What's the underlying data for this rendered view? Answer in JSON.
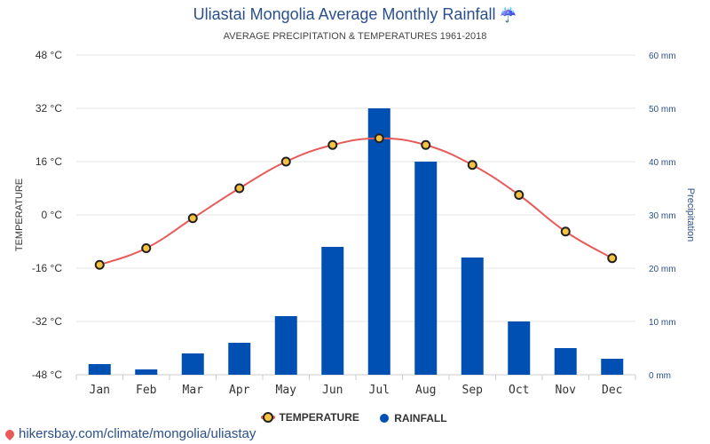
{
  "title": "Uliastai Mongolia Average Monthly Rainfall",
  "title_icon": "umbrella-icon",
  "subtitle": "AVERAGE PRECIPITATION & TEMPERATURES 1961-2018",
  "source": "hikersbay.com/climate/mongolia/uliastay",
  "legend": {
    "temperature": "TEMPERATURE",
    "rainfall": "RAINFALL"
  },
  "colors": {
    "bar": "#0050b4",
    "line": "#e85b5b",
    "marker": "#f5c242",
    "title": "#2a4f8a"
  },
  "chart_data": {
    "type": "bar",
    "categories": [
      "Jan",
      "Feb",
      "Mar",
      "Apr",
      "May",
      "Jun",
      "Jul",
      "Aug",
      "Sep",
      "Oct",
      "Nov",
      "Dec"
    ],
    "series": [
      {
        "name": "TEMPERATURE",
        "type": "line",
        "axis": "left",
        "unit": "°C",
        "values": [
          -15,
          -10,
          -1,
          8,
          16,
          21,
          23,
          21,
          15,
          6,
          -5,
          -13
        ]
      },
      {
        "name": "RAINFALL",
        "type": "bar",
        "axis": "right",
        "unit": "mm",
        "values": [
          2,
          1,
          4,
          6,
          11,
          24,
          50,
          40,
          22,
          10,
          5,
          3
        ]
      }
    ],
    "ylabel_left": "TEMPERATURE",
    "ylabel_right": "Precipitation",
    "ylim_left": [
      -48,
      48
    ],
    "ylim_right": [
      0,
      60
    ],
    "yticks_left": [
      "48 °C",
      "32 °C",
      "16 °C",
      "0 °C",
      "-16 °C",
      "-32 °C",
      "-48 °C"
    ],
    "yticks_right": [
      "60 mm",
      "50 mm",
      "40 mm",
      "30 mm",
      "20 mm",
      "10 mm",
      "0 mm"
    ],
    "grid": true,
    "legend_position": "bottom"
  }
}
